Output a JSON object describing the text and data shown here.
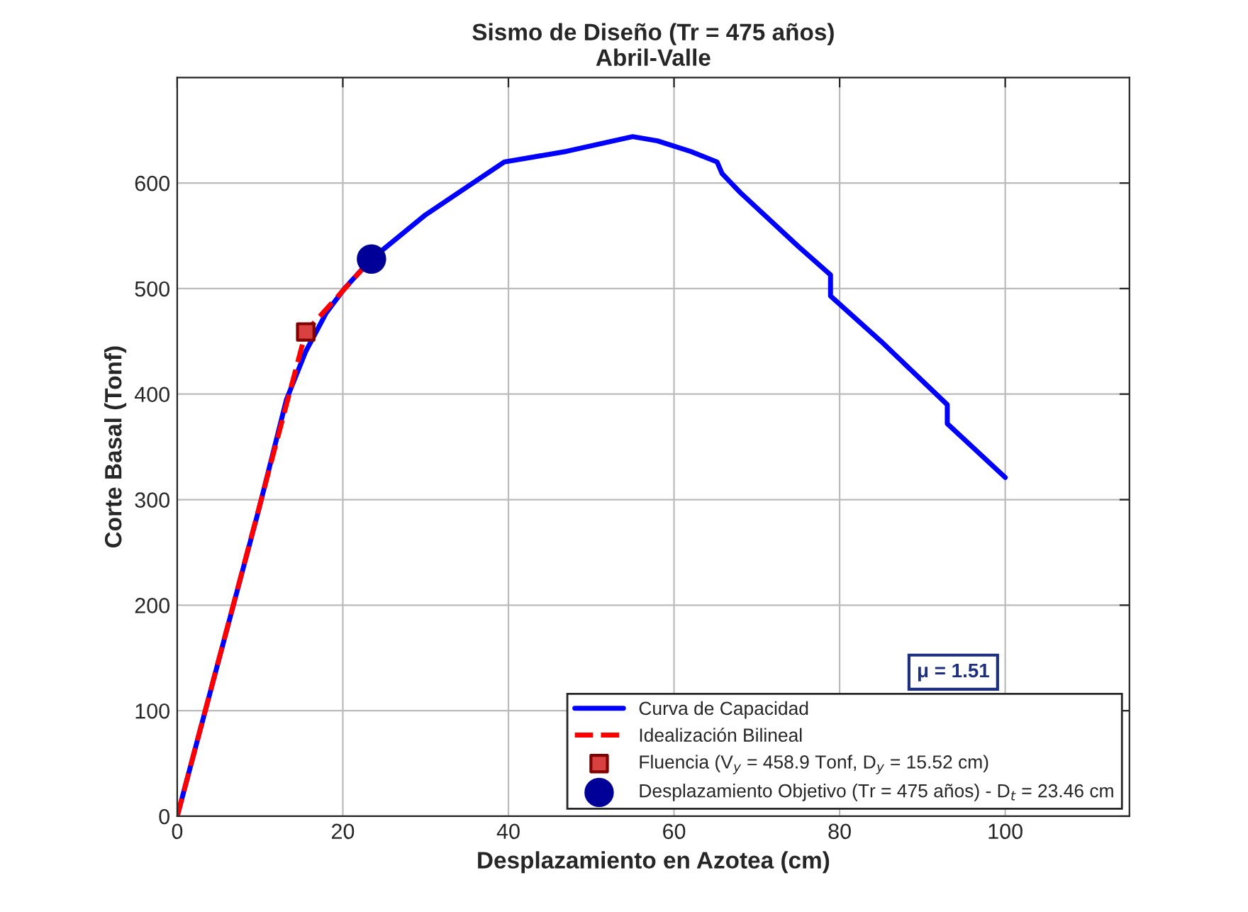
{
  "chart_data": {
    "type": "line",
    "title": "Sismo de Diseño (Tr = 475 años)\nAbril-Valle",
    "xlabel": "Desplazamiento en Azotea (cm)",
    "ylabel": "Corte Basal (Tonf)",
    "series": [
      {
        "name": "Curva de Capacidad",
        "color": "#0000ff",
        "line_style": "solid",
        "marker": "none",
        "x": [
          0,
          9.8,
          13.2,
          15.5,
          18,
          20.2,
          23.46,
          30,
          39.5,
          47,
          55,
          58,
          62,
          65.2,
          65.8,
          68,
          75,
          78.9,
          78.9,
          85,
          93,
          93,
          100
        ],
        "values": [
          0,
          289,
          395,
          440,
          477,
          500,
          528,
          570,
          620,
          630,
          644,
          640,
          630,
          620,
          609,
          591,
          540,
          513,
          493,
          450,
          390,
          372,
          321
        ]
      },
      {
        "name": "Idealización Bilineal",
        "color": "#ff0000",
        "line_style": "dashed",
        "marker": "none",
        "x": [
          0,
          15.52,
          23.46
        ],
        "values": [
          0,
          458.9,
          528
        ]
      },
      {
        "name": "Fluencia (V$_{y}$ = 458.9 Tonf, D$_{y}$ = 15.52 cm)",
        "type": "scatter",
        "color": "#d94040",
        "marker": "square",
        "x": [
          15.52
        ],
        "values": [
          458.9
        ]
      },
      {
        "name": "Desplazamiento Objetivo (Tr = 475 años) - D$_{t}$ = 23.46 cm",
        "type": "scatter",
        "color": "#000099",
        "marker": "circle",
        "x": [
          23.46
        ],
        "values": [
          528
        ]
      }
    ],
    "xlim": [
      0,
      115
    ],
    "xticks": [
      0,
      20,
      40,
      60,
      80,
      100
    ],
    "ylim": [
      0,
      700
    ],
    "yticks": [
      0,
      100,
      200,
      300,
      400,
      500,
      600
    ],
    "grid": true,
    "legend": "bottom right",
    "annotations": [
      "μ = 1.51"
    ]
  }
}
